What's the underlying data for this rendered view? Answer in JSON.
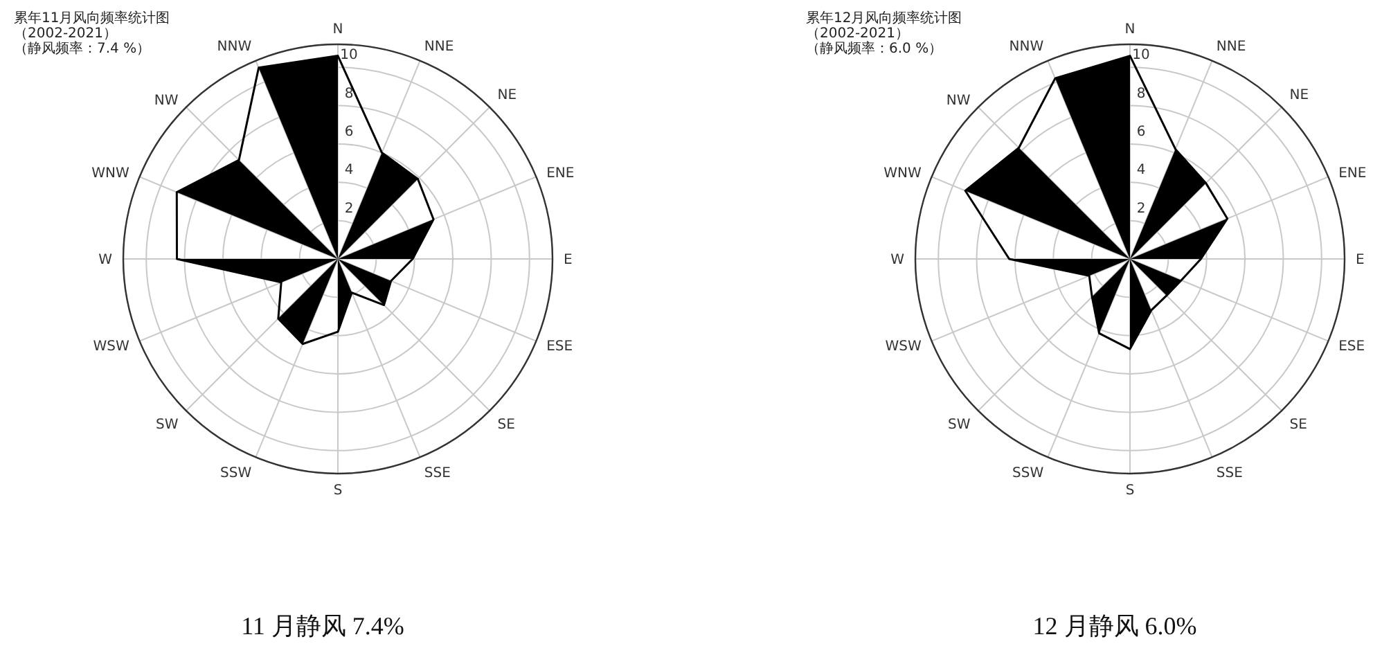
{
  "chart_data": [
    {
      "type": "radar",
      "title": "累年11月风向频率统计图",
      "subtitle": "（2002-2021）",
      "annotations": [
        "（静风频率：7.4 %）",
        "11 月静风 7.4%"
      ],
      "categories": [
        "N",
        "NNE",
        "NE",
        "ENE",
        "E",
        "ESE",
        "SE",
        "SSE",
        "S",
        "SSW",
        "SW",
        "WSW",
        "W",
        "WNW",
        "NW",
        "NNW"
      ],
      "series": [
        {
          "color": "#000000",
          "values": [
            10.6,
            6.0,
            5.9,
            5.4,
            3.9,
            3.0,
            3.4,
            1.9,
            3.8,
            4.8,
            4.4,
            3.2,
            8.4,
            9.1,
            7.3,
            10.8
          ]
        }
      ],
      "ylim": [
        0,
        11.2
      ],
      "yticks": [
        2,
        4,
        6,
        8,
        10
      ],
      "grid": true
    },
    {
      "type": "radar",
      "title": "累年12月风向频率统计图",
      "subtitle": "（2002-2021）",
      "annotations": [
        "（静风频率：6.0 %）",
        "12 月静风 6.0%"
      ],
      "categories": [
        "N",
        "NNE",
        "NE",
        "ENE",
        "E",
        "ESE",
        "SE",
        "SSE",
        "S",
        "SSW",
        "SW",
        "WSW",
        "W",
        "WNW",
        "NW",
        "NNW"
      ],
      "series": [
        {
          "color": "#000000",
          "values": [
            10.6,
            6.2,
            5.6,
            5.5,
            3.7,
            2.9,
            2.7,
            2.9,
            4.7,
            4.2,
            2.8,
            2.3,
            6.3,
            9.3,
            8.2,
            10.2
          ]
        }
      ],
      "ylim": [
        0,
        11.2
      ],
      "yticks": [
        2,
        4,
        6,
        8,
        10
      ],
      "grid": true
    }
  ]
}
